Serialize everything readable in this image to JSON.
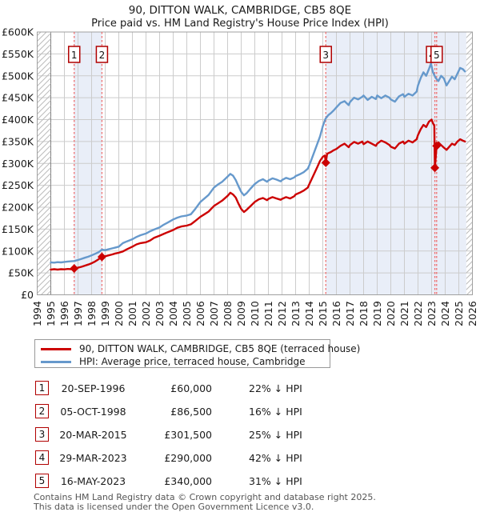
{
  "title": "90, DITTON WALK, CAMBRIDGE, CB5 8QE",
  "subtitle": "Price paid vs. HM Land Registry's House Price Index (HPI)",
  "legend": [
    {
      "label": "90, DITTON WALK, CAMBRIDGE, CB5 8QE (terraced house)",
      "color": "#cc0000"
    },
    {
      "label": "HPI: Average price, terraced house, Cambridge",
      "color": "#6699cc"
    }
  ],
  "transactions": [
    {
      "num": "1",
      "date": "20-SEP-1996",
      "price": "£60,000",
      "hpi": "22% ↓ HPI",
      "year": 1996.72,
      "value": 60000
    },
    {
      "num": "2",
      "date": "05-OCT-1998",
      "price": "£86,500",
      "hpi": "16% ↓ HPI",
      "year": 1998.76,
      "value": 86500
    },
    {
      "num": "3",
      "date": "20-MAR-2015",
      "price": "£301,500",
      "hpi": "25% ↓ HPI",
      "year": 2015.22,
      "value": 301500
    },
    {
      "num": "4",
      "date": "29-MAR-2023",
      "price": "£290,000",
      "hpi": "42% ↓ HPI",
      "year": 2023.24,
      "value": 290000
    },
    {
      "num": "5",
      "date": "16-MAY-2023",
      "price": "£340,000",
      "hpi": "31% ↓ HPI",
      "year": 2023.37,
      "value": 340000
    }
  ],
  "footer": [
    "Contains HM Land Registry data © Crown copyright and database right 2025.",
    "This data is licensed under the Open Government Licence v3.0."
  ],
  "chart_data": {
    "type": "line",
    "x_range": [
      1994,
      2026
    ],
    "y_range": [
      0,
      600000
    ],
    "x_ticks": [
      1994,
      1995,
      1996,
      1997,
      1998,
      1999,
      2000,
      2001,
      2002,
      2003,
      2004,
      2005,
      2006,
      2007,
      2008,
      2009,
      2010,
      2011,
      2012,
      2013,
      2014,
      2015,
      2016,
      2017,
      2018,
      2019,
      2020,
      2021,
      2022,
      2023,
      2024,
      2025,
      2026
    ],
    "y_tick_values": [
      0,
      50000,
      100000,
      150000,
      200000,
      250000,
      300000,
      350000,
      400000,
      450000,
      500000,
      550000,
      600000
    ],
    "y_tick_labels": [
      "£0",
      "£50K",
      "£100K",
      "£150K",
      "£200K",
      "£250K",
      "£300K",
      "£350K",
      "£400K",
      "£450K",
      "£500K",
      "£550K",
      "£600K"
    ],
    "bands": [
      [
        1996.72,
        1998.76
      ],
      [
        2015.22,
        2025.55
      ]
    ],
    "hatch": [
      [
        1994,
        1995
      ],
      [
        2025.55,
        2026
      ]
    ],
    "colors": {
      "band": "#e9eef8",
      "grid": "#cccccc",
      "grid_dark": "#808080",
      "border": "#a0a0a0",
      "dash": "#ee7070",
      "hatch_line": "#bbbbbb"
    },
    "legend_position": "below",
    "grid": true,
    "series": [
      {
        "name": "HPI: Average price, terraced house, Cambridge",
        "color": "#6699cc",
        "points": [
          [
            1995.0,
            74000
          ],
          [
            1995.25,
            73500
          ],
          [
            1995.5,
            74500
          ],
          [
            1995.75,
            74000
          ],
          [
            1996.0,
            75000
          ],
          [
            1996.25,
            76000
          ],
          [
            1996.5,
            76500
          ],
          [
            1996.72,
            77000
          ],
          [
            1997.0,
            79500
          ],
          [
            1997.25,
            82000
          ],
          [
            1997.5,
            84500
          ],
          [
            1997.75,
            87000
          ],
          [
            1998.0,
            90000
          ],
          [
            1998.25,
            93500
          ],
          [
            1998.5,
            97000
          ],
          [
            1998.76,
            103000
          ],
          [
            1999.0,
            102000
          ],
          [
            1999.25,
            104000
          ],
          [
            1999.5,
            106000
          ],
          [
            1999.75,
            108000
          ],
          [
            2000.0,
            110000
          ],
          [
            2000.3,
            118000
          ],
          [
            2000.6,
            122000
          ],
          [
            2001.0,
            127000
          ],
          [
            2001.3,
            132000
          ],
          [
            2001.6,
            136000
          ],
          [
            2002.0,
            140000
          ],
          [
            2002.3,
            145000
          ],
          [
            2002.6,
            149000
          ],
          [
            2003.0,
            154000
          ],
          [
            2003.3,
            160000
          ],
          [
            2003.6,
            165000
          ],
          [
            2004.0,
            172000
          ],
          [
            2004.3,
            176000
          ],
          [
            2004.6,
            179000
          ],
          [
            2005.0,
            181000
          ],
          [
            2005.3,
            184000
          ],
          [
            2005.6,
            195000
          ],
          [
            2006.0,
            212000
          ],
          [
            2006.3,
            220000
          ],
          [
            2006.6,
            228000
          ],
          [
            2007.0,
            245000
          ],
          [
            2007.3,
            252000
          ],
          [
            2007.6,
            258000
          ],
          [
            2008.0,
            270000
          ],
          [
            2008.2,
            276000
          ],
          [
            2008.4,
            272000
          ],
          [
            2008.6,
            262000
          ],
          [
            2008.8,
            248000
          ],
          [
            2009.0,
            235000
          ],
          [
            2009.2,
            227000
          ],
          [
            2009.4,
            232000
          ],
          [
            2009.7,
            243000
          ],
          [
            2010.0,
            253000
          ],
          [
            2010.3,
            260000
          ],
          [
            2010.6,
            264000
          ],
          [
            2010.9,
            258000
          ],
          [
            2011.0,
            261000
          ],
          [
            2011.3,
            266000
          ],
          [
            2011.6,
            263000
          ],
          [
            2011.9,
            259000
          ],
          [
            2012.0,
            262000
          ],
          [
            2012.3,
            267000
          ],
          [
            2012.6,
            264000
          ],
          [
            2012.9,
            268000
          ],
          [
            2013.0,
            271000
          ],
          [
            2013.3,
            275000
          ],
          [
            2013.6,
            280000
          ],
          [
            2013.9,
            288000
          ],
          [
            2014.0,
            295000
          ],
          [
            2014.3,
            320000
          ],
          [
            2014.6,
            345000
          ],
          [
            2014.8,
            362000
          ],
          [
            2015.0,
            385000
          ],
          [
            2015.2,
            402000
          ],
          [
            2015.4,
            410000
          ],
          [
            2015.6,
            415000
          ],
          [
            2015.8,
            421000
          ],
          [
            2016.0,
            428000
          ],
          [
            2016.3,
            438000
          ],
          [
            2016.6,
            442000
          ],
          [
            2016.9,
            433000
          ],
          [
            2017.0,
            440000
          ],
          [
            2017.3,
            450000
          ],
          [
            2017.6,
            446000
          ],
          [
            2017.9,
            452000
          ],
          [
            2018.0,
            455000
          ],
          [
            2018.3,
            445000
          ],
          [
            2018.6,
            452000
          ],
          [
            2018.9,
            447000
          ],
          [
            2019.0,
            455000
          ],
          [
            2019.3,
            449000
          ],
          [
            2019.6,
            455000
          ],
          [
            2019.9,
            450000
          ],
          [
            2020.0,
            446000
          ],
          [
            2020.3,
            441000
          ],
          [
            2020.6,
            453000
          ],
          [
            2020.9,
            458000
          ],
          [
            2021.0,
            452000
          ],
          [
            2021.3,
            459000
          ],
          [
            2021.6,
            455000
          ],
          [
            2021.9,
            464000
          ],
          [
            2022.0,
            478000
          ],
          [
            2022.2,
            495000
          ],
          [
            2022.4,
            508000
          ],
          [
            2022.6,
            500000
          ],
          [
            2022.8,
            515000
          ],
          [
            2022.95,
            528000
          ],
          [
            2023.1,
            508000
          ],
          [
            2023.3,
            495000
          ],
          [
            2023.5,
            488000
          ],
          [
            2023.7,
            500000
          ],
          [
            2023.9,
            494000
          ],
          [
            2024.1,
            478000
          ],
          [
            2024.3,
            488000
          ],
          [
            2024.5,
            498000
          ],
          [
            2024.7,
            492000
          ],
          [
            2024.9,
            505000
          ],
          [
            2025.1,
            518000
          ],
          [
            2025.3,
            515000
          ],
          [
            2025.45,
            510000
          ]
        ]
      },
      {
        "name": "90, DITTON WALK, CAMBRIDGE, CB5 8QE (terraced house)",
        "color": "#cc0000",
        "points": [
          [
            1995.0,
            57500
          ],
          [
            1995.25,
            58500
          ],
          [
            1995.5,
            57500
          ],
          [
            1995.75,
            58500
          ],
          [
            1996.0,
            58000
          ],
          [
            1996.25,
            59000
          ],
          [
            1996.5,
            58500
          ],
          [
            1996.72,
            60000
          ],
          [
            1997.0,
            62000
          ],
          [
            1997.25,
            64000
          ],
          [
            1997.5,
            66500
          ],
          [
            1997.75,
            69000
          ],
          [
            1998.0,
            72000
          ],
          [
            1998.25,
            76000
          ],
          [
            1998.5,
            81000
          ],
          [
            1998.76,
            86500
          ],
          [
            1999.0,
            88000
          ],
          [
            1999.25,
            90000
          ],
          [
            1999.5,
            92000
          ],
          [
            1999.75,
            94500
          ],
          [
            2000.0,
            96000
          ],
          [
            2000.3,
            99000
          ],
          [
            2000.6,
            104000
          ],
          [
            2001.0,
            110000
          ],
          [
            2001.3,
            115000
          ],
          [
            2001.6,
            118000
          ],
          [
            2002.0,
            120000
          ],
          [
            2002.3,
            124000
          ],
          [
            2002.6,
            130000
          ],
          [
            2003.0,
            135000
          ],
          [
            2003.3,
            139000
          ],
          [
            2003.6,
            143000
          ],
          [
            2004.0,
            148000
          ],
          [
            2004.3,
            153000
          ],
          [
            2004.6,
            156000
          ],
          [
            2005.0,
            158000
          ],
          [
            2005.3,
            161000
          ],
          [
            2005.6,
            168000
          ],
          [
            2006.0,
            178000
          ],
          [
            2006.3,
            184000
          ],
          [
            2006.6,
            190000
          ],
          [
            2007.0,
            203000
          ],
          [
            2007.3,
            209000
          ],
          [
            2007.6,
            215000
          ],
          [
            2008.0,
            226000
          ],
          [
            2008.2,
            233000
          ],
          [
            2008.4,
            229000
          ],
          [
            2008.6,
            222000
          ],
          [
            2008.8,
            208000
          ],
          [
            2009.0,
            196000
          ],
          [
            2009.2,
            189000
          ],
          [
            2009.4,
            194000
          ],
          [
            2009.7,
            203000
          ],
          [
            2010.0,
            212000
          ],
          [
            2010.3,
            218000
          ],
          [
            2010.6,
            221000
          ],
          [
            2010.9,
            216000
          ],
          [
            2011.0,
            219000
          ],
          [
            2011.3,
            223000
          ],
          [
            2011.6,
            220000
          ],
          [
            2011.9,
            217000
          ],
          [
            2012.0,
            219000
          ],
          [
            2012.3,
            223000
          ],
          [
            2012.6,
            220000
          ],
          [
            2012.9,
            225000
          ],
          [
            2013.0,
            229000
          ],
          [
            2013.3,
            233000
          ],
          [
            2013.6,
            238000
          ],
          [
            2013.9,
            245000
          ],
          [
            2014.0,
            252000
          ],
          [
            2014.3,
            272000
          ],
          [
            2014.6,
            292000
          ],
          [
            2014.8,
            306000
          ],
          [
            2015.0,
            315000
          ],
          [
            2015.15,
            318000
          ],
          [
            2015.22,
            301500
          ],
          [
            2015.32,
            322000
          ],
          [
            2015.6,
            326000
          ],
          [
            2015.8,
            330000
          ],
          [
            2016.0,
            333000
          ],
          [
            2016.3,
            340000
          ],
          [
            2016.6,
            345000
          ],
          [
            2016.9,
            337000
          ],
          [
            2017.0,
            342000
          ],
          [
            2017.3,
            349000
          ],
          [
            2017.6,
            345000
          ],
          [
            2017.9,
            350000
          ],
          [
            2018.0,
            344000
          ],
          [
            2018.3,
            350000
          ],
          [
            2018.6,
            345000
          ],
          [
            2018.9,
            340000
          ],
          [
            2019.0,
            345000
          ],
          [
            2019.3,
            352000
          ],
          [
            2019.6,
            348000
          ],
          [
            2019.9,
            342000
          ],
          [
            2020.0,
            338000
          ],
          [
            2020.3,
            334000
          ],
          [
            2020.6,
            345000
          ],
          [
            2020.9,
            350000
          ],
          [
            2021.0,
            345000
          ],
          [
            2021.3,
            352000
          ],
          [
            2021.6,
            348000
          ],
          [
            2021.9,
            355000
          ],
          [
            2022.0,
            365000
          ],
          [
            2022.2,
            378000
          ],
          [
            2022.4,
            388000
          ],
          [
            2022.6,
            383000
          ],
          [
            2022.8,
            395000
          ],
          [
            2023.0,
            400000
          ],
          [
            2023.1,
            392000
          ],
          [
            2023.2,
            386000
          ],
          [
            2023.24,
            290000
          ],
          [
            2023.37,
            340000
          ],
          [
            2023.5,
            348000
          ],
          [
            2023.7,
            342000
          ],
          [
            2023.9,
            336000
          ],
          [
            2024.1,
            331000
          ],
          [
            2024.3,
            338000
          ],
          [
            2024.5,
            345000
          ],
          [
            2024.7,
            342000
          ],
          [
            2024.9,
            350000
          ],
          [
            2025.1,
            355000
          ],
          [
            2025.3,
            352000
          ],
          [
            2025.45,
            350000
          ]
        ]
      }
    ]
  }
}
